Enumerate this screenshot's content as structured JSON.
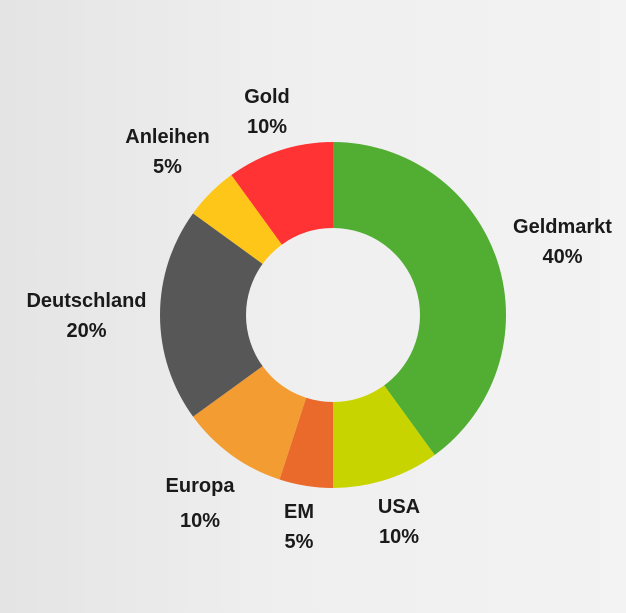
{
  "chart_data": {
    "type": "pie",
    "title": "",
    "slices": [
      {
        "label": "Geldmarkt",
        "value": 40,
        "pct_label": "40%",
        "color": "#52ad33"
      },
      {
        "label": "USA",
        "value": 10,
        "pct_label": "10%",
        "color": "#c8d400"
      },
      {
        "label": "EM",
        "value": 5,
        "pct_label": "5%",
        "color": "#ea6a2c"
      },
      {
        "label": "Europa",
        "value": 10,
        "pct_label": "10%",
        "color": "#f39c31"
      },
      {
        "label": "Deutschland",
        "value": 20,
        "pct_label": "20%",
        "color": "#575757"
      },
      {
        "label": "Anleihen",
        "value": 5,
        "pct_label": "5%",
        "color": "#fec618"
      },
      {
        "label": "Gold",
        "value": 10,
        "pct_label": "10%",
        "color": "#ff3333"
      }
    ],
    "legend": "none",
    "style": "donut"
  }
}
